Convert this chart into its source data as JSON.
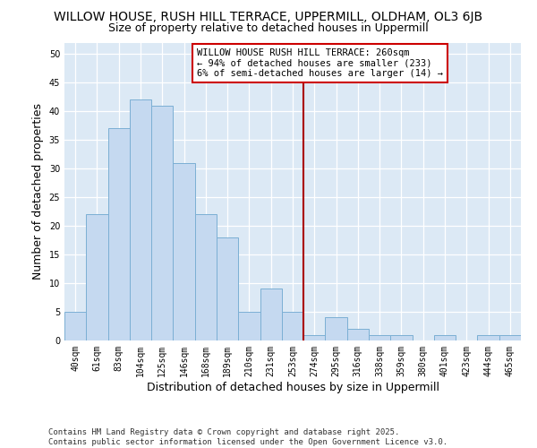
{
  "title1": "WILLOW HOUSE, RUSH HILL TERRACE, UPPERMILL, OLDHAM, OL3 6JB",
  "title2": "Size of property relative to detached houses in Uppermill",
  "xlabel": "Distribution of detached houses by size in Uppermill",
  "ylabel": "Number of detached properties",
  "categories": [
    "40sqm",
    "61sqm",
    "83sqm",
    "104sqm",
    "125sqm",
    "146sqm",
    "168sqm",
    "189sqm",
    "210sqm",
    "231sqm",
    "253sqm",
    "274sqm",
    "295sqm",
    "316sqm",
    "338sqm",
    "359sqm",
    "380sqm",
    "401sqm",
    "423sqm",
    "444sqm",
    "465sqm"
  ],
  "values": [
    5,
    22,
    37,
    42,
    41,
    31,
    22,
    18,
    5,
    9,
    5,
    1,
    4,
    2,
    1,
    1,
    0,
    1,
    0,
    1,
    1
  ],
  "bar_color": "#c5d9f0",
  "bar_edge_color": "#7bafd4",
  "background_color": "#dce9f5",
  "grid_color": "#ffffff",
  "annotation_line_color": "#aa0000",
  "annotation_box_text": "WILLOW HOUSE RUSH HILL TERRACE: 260sqm\n← 94% of detached houses are smaller (233)\n6% of semi-detached houses are larger (14) →",
  "annotation_box_color": "#cc0000",
  "ylim": [
    0,
    52
  ],
  "yticks": [
    0,
    5,
    10,
    15,
    20,
    25,
    30,
    35,
    40,
    45,
    50
  ],
  "footnote": "Contains HM Land Registry data © Crown copyright and database right 2025.\nContains public sector information licensed under the Open Government Licence v3.0.",
  "title_fontsize": 10,
  "subtitle_fontsize": 9,
  "axis_label_fontsize": 9,
  "tick_fontsize": 7,
  "annotation_fontsize": 7.5,
  "footnote_fontsize": 6.5
}
